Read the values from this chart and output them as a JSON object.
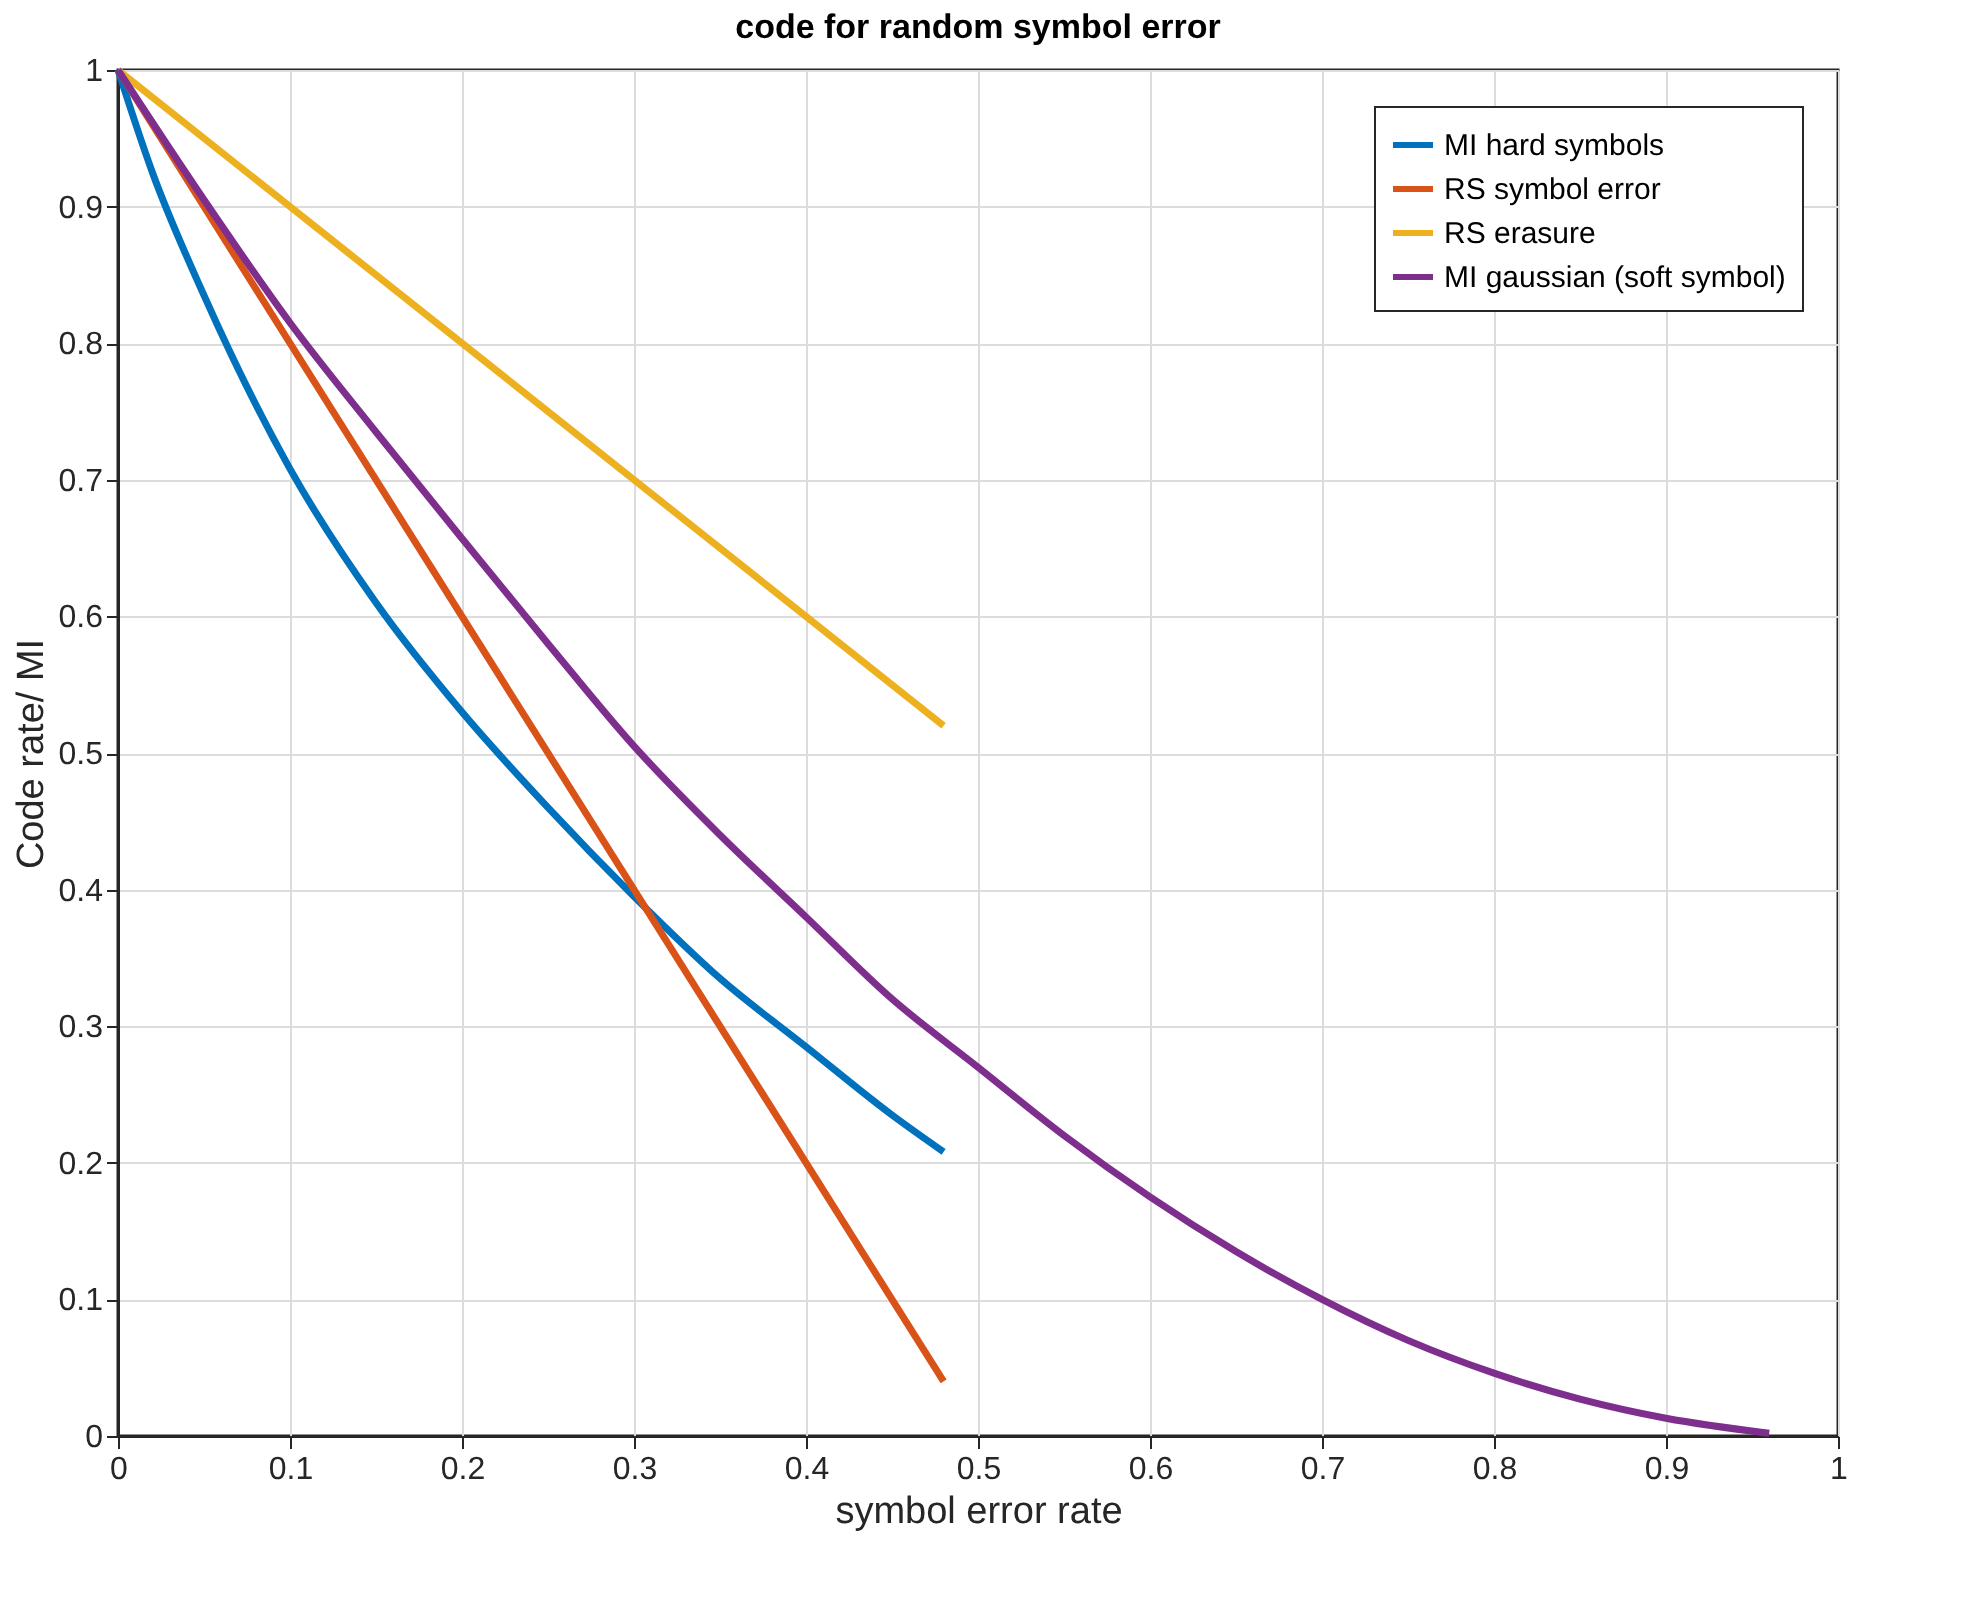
{
  "chart_data": {
    "type": "line",
    "title": "code for random symbol error",
    "xlabel": "symbol error rate",
    "ylabel": "Code rate/ MI",
    "xlim": [
      0,
      1
    ],
    "ylim": [
      0,
      1
    ],
    "xticks": [
      0,
      0.1,
      0.2,
      0.3,
      0.4,
      0.5,
      0.6,
      0.7,
      0.8,
      0.9,
      1
    ],
    "yticks": [
      0,
      0.1,
      0.2,
      0.3,
      0.4,
      0.5,
      0.6,
      0.7,
      0.8,
      0.9,
      1
    ],
    "grid": true,
    "legend": "top right",
    "marker": "none",
    "line_style": "solid",
    "series": [
      {
        "name": "MI hard symbols",
        "color": "#0072bd",
        "x": [
          0,
          0.02,
          0.05,
          0.1,
          0.15,
          0.2,
          0.25,
          0.3,
          0.35,
          0.4,
          0.45,
          0.48
        ],
        "values": [
          1,
          0.925,
          0.835,
          0.708,
          0.61,
          0.53,
          0.46,
          0.395,
          0.335,
          0.285,
          0.235,
          0.208
        ]
      },
      {
        "name": "RS symbol error",
        "color": "#d95319",
        "x": [
          0,
          0.48
        ],
        "values": [
          1,
          0.04
        ]
      },
      {
        "name": "RS erasure",
        "color": "#edb120",
        "x": [
          0,
          0.48
        ],
        "values": [
          1,
          0.52
        ]
      },
      {
        "name": "MI gaussian (soft symbol)",
        "color": "#7e2f8e",
        "x": [
          0,
          0.05,
          0.1,
          0.15,
          0.2,
          0.25,
          0.3,
          0.35,
          0.4,
          0.45,
          0.5,
          0.55,
          0.6,
          0.65,
          0.7,
          0.75,
          0.8,
          0.85,
          0.9,
          0.96
        ],
        "values": [
          1,
          0.905,
          0.815,
          0.735,
          0.657,
          0.58,
          0.505,
          0.44,
          0.38,
          0.32,
          0.27,
          0.22,
          0.175,
          0.135,
          0.1,
          0.07,
          0.046,
          0.027,
          0.013,
          0.002
        ]
      }
    ]
  }
}
